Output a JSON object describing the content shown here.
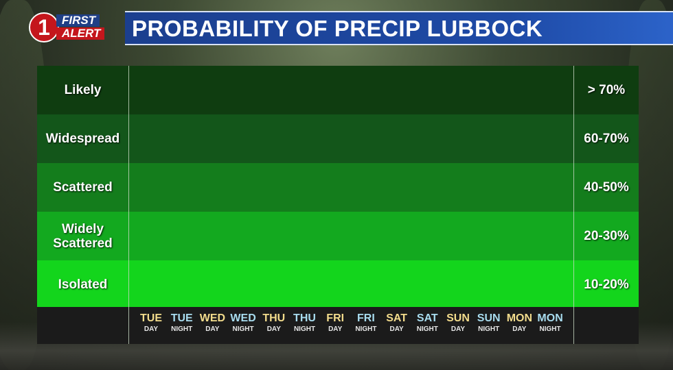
{
  "header": {
    "logo": {
      "number": "1",
      "line1": "FIRST",
      "line2": "ALERT"
    },
    "title": "PROBABILITY OF PRECIP LUBBOCK"
  },
  "colors": {
    "band_likely": "#0f3d10",
    "band_widespread": "#13561a",
    "band_scattered": "#147d1c",
    "band_widely_scattered": "#13a91f",
    "band_isolated": "#13d51c",
    "day_label": "#f3dc8c",
    "night_label": "#a8dcef",
    "title_bar": "#1e4aa6"
  },
  "chart_data": {
    "type": "bar",
    "title": "PROBABILITY OF PRECIP LUBBOCK",
    "y_categories": [
      {
        "label": "Likely",
        "range": "> 70%"
      },
      {
        "label": "Widespread",
        "range": "60-70%"
      },
      {
        "label": "Scattered",
        "range": "40-50%"
      },
      {
        "label": "Widely\nScattered",
        "range": "20-30%"
      },
      {
        "label": "Isolated",
        "range": "10-20%"
      }
    ],
    "periods": [
      {
        "day": "TUE",
        "part": "DAY"
      },
      {
        "day": "TUE",
        "part": "NIGHT"
      },
      {
        "day": "WED",
        "part": "DAY"
      },
      {
        "day": "WED",
        "part": "NIGHT"
      },
      {
        "day": "THU",
        "part": "DAY"
      },
      {
        "day": "THU",
        "part": "NIGHT"
      },
      {
        "day": "FRI",
        "part": "DAY"
      },
      {
        "day": "FRI",
        "part": "NIGHT"
      },
      {
        "day": "SAT",
        "part": "DAY"
      },
      {
        "day": "SAT",
        "part": "NIGHT"
      },
      {
        "day": "SUN",
        "part": "DAY"
      },
      {
        "day": "SUN",
        "part": "NIGHT"
      },
      {
        "day": "MON",
        "part": "DAY"
      },
      {
        "day": "MON",
        "part": "NIGHT"
      }
    ],
    "values": [
      null,
      null,
      null,
      null,
      null,
      null,
      null,
      null,
      null,
      null,
      null,
      null,
      null,
      null
    ],
    "grid": false
  }
}
